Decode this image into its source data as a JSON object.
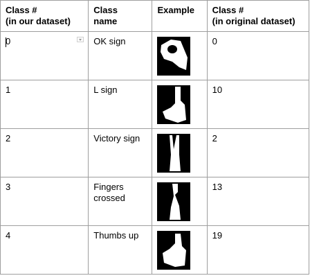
{
  "headers": {
    "class_ours": "Class #\n(in our dataset)",
    "class_name": "Class\nname",
    "example": "Example",
    "class_orig": "Class #\n(in original dataset)"
  },
  "rows": [
    {
      "ours": "0",
      "name": "OK sign",
      "orig": "0"
    },
    {
      "ours": "1",
      "name": "L sign",
      "orig": "10"
    },
    {
      "ours": "2",
      "name": "Victory sign",
      "orig": "2"
    },
    {
      "ours": "3",
      "name": "Fingers\ncrossed",
      "orig": "13"
    },
    {
      "ours": "4",
      "name": "Thumbs up",
      "orig": "19"
    }
  ],
  "colors": {
    "grid": "#9e9e9e",
    "image_bg": "#000000",
    "image_fg": "#ffffff"
  },
  "icons": {
    "cell_menu": "dropdown-arrow-icon"
  }
}
